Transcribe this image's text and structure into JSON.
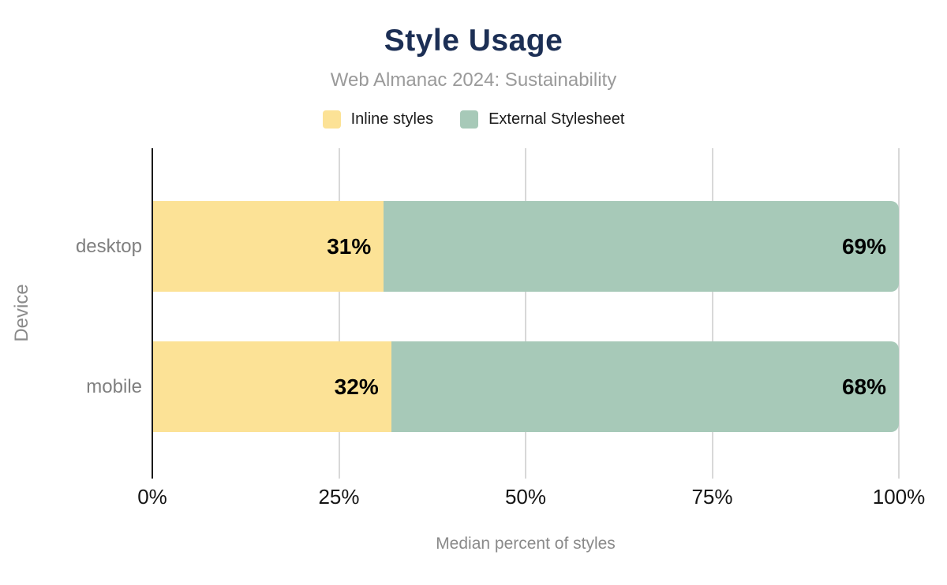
{
  "title": "Style Usage",
  "subtitle": "Web Almanac 2024: Sustainability",
  "legend": [
    {
      "label": "Inline styles",
      "color": "#FCE296"
    },
    {
      "label": "External Stylesheet",
      "color": "#A7C9B8"
    }
  ],
  "chart_data": {
    "type": "bar",
    "orientation": "horizontal",
    "stacked": true,
    "title": "Style Usage",
    "subtitle": "Web Almanac 2024: Sustainability",
    "categories": [
      "desktop",
      "mobile"
    ],
    "series": [
      {
        "name": "Inline styles",
        "color": "#FCE296",
        "values": [
          31,
          32
        ]
      },
      {
        "name": "External Stylesheet",
        "color": "#A7C9B8",
        "values": [
          69,
          68
        ]
      }
    ],
    "value_suffix": "%",
    "xlabel": "Median percent of styles",
    "ylabel": "Device",
    "xlim": [
      0,
      100
    ],
    "xticks": [
      0,
      25,
      50,
      75,
      100
    ],
    "xtick_labels": [
      "0%",
      "25%",
      "50%",
      "75%",
      "100%"
    ],
    "grid": true,
    "legend_position": "top"
  },
  "colors": {
    "title": "#1C2F55",
    "subtitle": "#9A9A9A",
    "category_label": "#7F7F7F",
    "axis_title": "#8A8A8A",
    "tick_label": "#141414",
    "value_label": "#000000",
    "gridline": "#D8D8D8",
    "axis_line": "#1A1A1A",
    "background": "#FFFFFF"
  }
}
